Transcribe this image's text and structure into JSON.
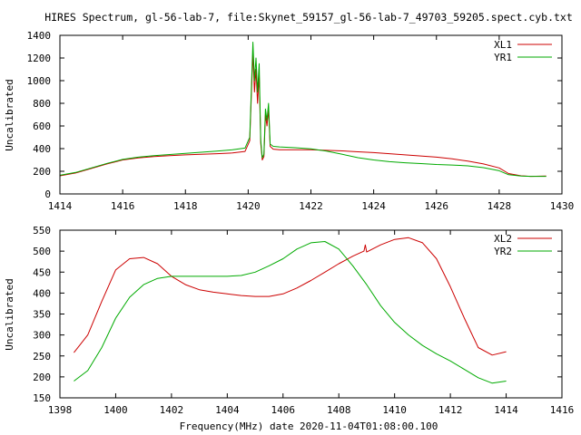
{
  "title": "HIRES Spectrum, gl-56-lab-7, file:Skynet_59157_gl-56-lab-7_49703_59205.spect.cyb.txt",
  "colors": {
    "red": "#cc0000",
    "green": "#00aa00",
    "axis": "#000000",
    "background": "#ffffff"
  },
  "chart_data": [
    {
      "type": "line",
      "xlabel": "",
      "ylabel": "Uncalibrated",
      "xlim": [
        1414,
        1430
      ],
      "ylim": [
        0,
        1400
      ],
      "xticks": [
        "1414",
        "1416",
        "1418",
        "1420",
        "1422",
        "1424",
        "1426",
        "1428",
        "1430"
      ],
      "yticks": [
        "0",
        "200",
        "400",
        "600",
        "800",
        "1000",
        "1200",
        "1400"
      ],
      "legend_position": "top-right",
      "grid": false,
      "series": [
        {
          "name": "XL1",
          "color": "#cc0000",
          "x": [
            1414.0,
            1414.5,
            1415.0,
            1415.5,
            1416.0,
            1416.5,
            1417.0,
            1417.5,
            1418.0,
            1418.5,
            1419.0,
            1419.5,
            1419.9,
            1420.05,
            1420.15,
            1420.2,
            1420.25,
            1420.3,
            1420.35,
            1420.4,
            1420.45,
            1420.5,
            1420.55,
            1420.6,
            1420.65,
            1420.7,
            1420.8,
            1421.0,
            1421.5,
            1422.0,
            1422.5,
            1423.0,
            1423.5,
            1424.0,
            1424.5,
            1425.0,
            1425.5,
            1426.0,
            1426.5,
            1427.0,
            1427.5,
            1428.0,
            1428.3,
            1428.7,
            1429.0,
            1429.5
          ],
          "y": [
            160,
            185,
            225,
            265,
            300,
            318,
            330,
            338,
            345,
            350,
            355,
            362,
            375,
            470,
            1250,
            900,
            1100,
            800,
            1050,
            450,
            300,
            330,
            700,
            600,
            750,
            420,
            395,
            390,
            390,
            390,
            385,
            380,
            372,
            365,
            355,
            345,
            335,
            325,
            310,
            290,
            265,
            230,
            180,
            160,
            155,
            158
          ]
        },
        {
          "name": "YR1",
          "color": "#00aa00",
          "x": [
            1414.0,
            1414.5,
            1415.0,
            1415.5,
            1416.0,
            1416.5,
            1417.0,
            1417.5,
            1418.0,
            1418.5,
            1419.0,
            1419.5,
            1419.9,
            1420.05,
            1420.15,
            1420.2,
            1420.25,
            1420.3,
            1420.35,
            1420.4,
            1420.45,
            1420.5,
            1420.55,
            1420.6,
            1420.65,
            1420.7,
            1420.8,
            1421.0,
            1421.5,
            1422.0,
            1422.5,
            1423.0,
            1423.5,
            1424.0,
            1424.5,
            1425.0,
            1425.5,
            1426.0,
            1426.5,
            1427.0,
            1427.5,
            1428.0,
            1428.3,
            1428.7,
            1429.0,
            1429.5
          ],
          "y": [
            165,
            190,
            230,
            270,
            305,
            325,
            338,
            348,
            358,
            368,
            378,
            390,
            405,
            500,
            1340,
            1000,
            1200,
            900,
            1150,
            480,
            320,
            350,
            750,
            650,
            800,
            440,
            420,
            415,
            408,
            398,
            378,
            350,
            320,
            300,
            285,
            275,
            268,
            260,
            255,
            248,
            232,
            205,
            170,
            158,
            155,
            155
          ]
        }
      ]
    },
    {
      "type": "line",
      "xlabel": "Frequency(MHz) date 2020-11-04T01:08:00.100",
      "ylabel": "Uncalibrated",
      "xlim": [
        1398,
        1416
      ],
      "ylim": [
        150,
        550
      ],
      "xticks": [
        "1398",
        "1400",
        "1402",
        "1404",
        "1406",
        "1408",
        "1410",
        "1412",
        "1414",
        "1416"
      ],
      "yticks": [
        "150",
        "200",
        "250",
        "300",
        "350",
        "400",
        "450",
        "500",
        "550"
      ],
      "legend_position": "top-right",
      "grid": false,
      "series": [
        {
          "name": "XL2",
          "color": "#cc0000",
          "x": [
            1398.5,
            1399.0,
            1399.5,
            1400.0,
            1400.5,
            1401.0,
            1401.5,
            1402.0,
            1402.5,
            1403.0,
            1403.5,
            1404.0,
            1404.5,
            1405.0,
            1405.5,
            1406.0,
            1406.5,
            1407.0,
            1407.5,
            1408.0,
            1408.5,
            1408.9,
            1408.95,
            1409.0,
            1409.5,
            1410.0,
            1410.5,
            1411.0,
            1411.5,
            1412.0,
            1412.5,
            1413.0,
            1413.5,
            1414.0
          ],
          "y": [
            258,
            300,
            380,
            455,
            482,
            485,
            470,
            440,
            420,
            408,
            402,
            398,
            394,
            392,
            392,
            398,
            412,
            430,
            450,
            470,
            488,
            500,
            515,
            498,
            515,
            528,
            532,
            520,
            482,
            415,
            340,
            270,
            252,
            260
          ]
        },
        {
          "name": "YR2",
          "color": "#00aa00",
          "x": [
            1398.5,
            1399.0,
            1399.5,
            1400.0,
            1400.5,
            1401.0,
            1401.5,
            1402.0,
            1402.5,
            1403.0,
            1403.5,
            1404.0,
            1404.5,
            1405.0,
            1405.5,
            1406.0,
            1406.5,
            1407.0,
            1407.5,
            1408.0,
            1408.5,
            1409.0,
            1409.5,
            1410.0,
            1410.5,
            1411.0,
            1411.5,
            1412.0,
            1412.5,
            1413.0,
            1413.5,
            1414.0
          ],
          "y": [
            190,
            215,
            270,
            340,
            390,
            420,
            435,
            440,
            440,
            440,
            440,
            440,
            442,
            450,
            465,
            482,
            505,
            520,
            523,
            505,
            465,
            420,
            370,
            330,
            300,
            275,
            255,
            238,
            218,
            198,
            185,
            190
          ]
        }
      ]
    }
  ]
}
